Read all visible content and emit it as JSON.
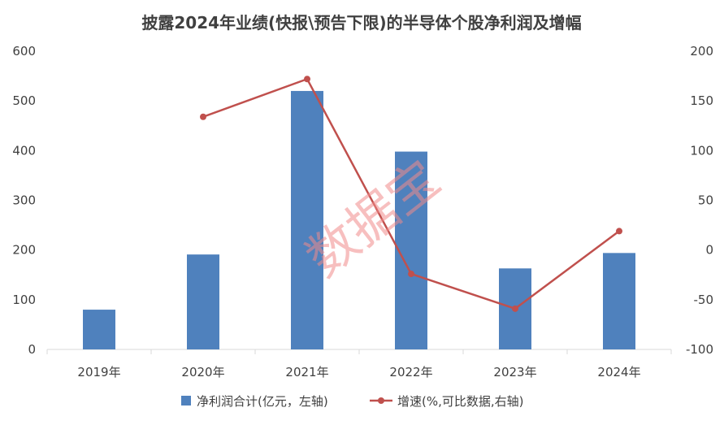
{
  "chart_data": {
    "type": "bar+line",
    "title": "披露2024年业绩(快报\\预告下限)的半导体个股净利润及增幅",
    "categories": [
      "2019年",
      "2020年",
      "2021年",
      "2022年",
      "2023年",
      "2024年"
    ],
    "series": [
      {
        "name": "净利润合计(亿元，左轴)",
        "type": "bar",
        "axis": "left",
        "values": [
          80,
          191,
          520,
          398,
          163,
          194
        ]
      },
      {
        "name": "增速(%,可比数据,右轴)",
        "type": "line",
        "axis": "right",
        "values": [
          null,
          134,
          172,
          -24,
          -59,
          19
        ]
      }
    ],
    "y_left": {
      "ylim": [
        0,
        600
      ],
      "ticks": [
        "0",
        "100",
        "200",
        "300",
        "400",
        "500",
        "600"
      ]
    },
    "y_right": {
      "ylim": [
        -100,
        200
      ],
      "ticks": [
        "-100",
        "-50",
        "0",
        "50",
        "100",
        "150",
        "200"
      ]
    },
    "grid": false,
    "legend_position": "bottom",
    "colors": {
      "bar": "#4f81bd",
      "line": "#c0504d",
      "axis": "#d9d9d9",
      "text": "#404040"
    },
    "watermark": "数据宝"
  }
}
